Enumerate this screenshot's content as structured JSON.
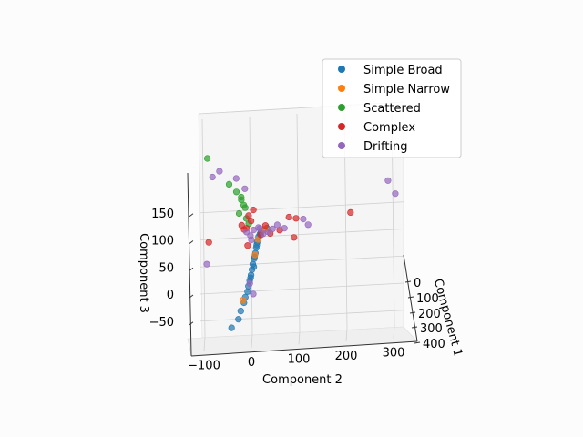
{
  "chart_data": {
    "type": "scatter",
    "projection": "3d",
    "title": "",
    "xlabel": "Component 1",
    "ylabel": "Component 2",
    "zlabel": "Component 3",
    "x_ticks": [
      "0",
      "100",
      "200",
      "300",
      "400"
    ],
    "y_ticks": [
      "−100",
      "0",
      "100",
      "200",
      "300"
    ],
    "z_ticks": [
      "−50",
      "0",
      "50",
      "100",
      "150"
    ],
    "xlim": [
      -20,
      420
    ],
    "ylim": [
      -120,
      320
    ],
    "zlim": [
      -70,
      260
    ],
    "grid": true,
    "legend_position": "top-right",
    "series": [
      {
        "name": "Simple Broad",
        "color": "#1f77b4",
        "points": [
          [
            20,
            -45,
            -60
          ],
          [
            20,
            -30,
            -45
          ],
          [
            20,
            -25,
            -30
          ],
          [
            20,
            -18,
            -15
          ],
          [
            20,
            -15,
            -5
          ],
          [
            20,
            -10,
            5
          ],
          [
            20,
            -8,
            15
          ],
          [
            20,
            -5,
            25
          ],
          [
            20,
            -2,
            35
          ],
          [
            20,
            0,
            45
          ],
          [
            20,
            2,
            55
          ],
          [
            20,
            5,
            65
          ],
          [
            20,
            8,
            75
          ],
          [
            20,
            10,
            85
          ],
          [
            20,
            12,
            95
          ],
          [
            20,
            15,
            105
          ],
          [
            20,
            18,
            110
          ],
          [
            20,
            22,
            115
          ],
          [
            20,
            28,
            118
          ],
          [
            20,
            33,
            120
          ],
          [
            20,
            -3,
            30
          ],
          [
            20,
            4,
            50
          ],
          [
            20,
            11,
            90
          ],
          [
            20,
            20,
            113
          ],
          [
            20,
            6,
            68
          ]
        ]
      },
      {
        "name": "Simple Narrow",
        "color": "#ff7f0e",
        "points": [
          [
            20,
            -20,
            -10
          ],
          [
            20,
            14,
            100
          ],
          [
            20,
            25,
            116
          ],
          [
            20,
            7,
            72
          ],
          [
            20,
            30,
            119
          ]
        ]
      },
      {
        "name": "Scattered",
        "color": "#2ca02c",
        "points": [
          [
            20,
            -90,
            255
          ],
          [
            20,
            -45,
            205
          ],
          [
            20,
            -30,
            190
          ],
          [
            20,
            -20,
            180
          ],
          [
            20,
            -15,
            165
          ],
          [
            20,
            -25,
            150
          ],
          [
            20,
            -10,
            140
          ],
          [
            20,
            -5,
            130
          ],
          [
            20,
            -20,
            175
          ],
          [
            20,
            -12,
            160
          ]
        ]
      },
      {
        "name": "Complex",
        "color": "#d62728",
        "points": [
          [
            20,
            -90,
            100
          ],
          [
            20,
            210,
            140
          ],
          [
            20,
            80,
            138
          ],
          [
            20,
            95,
            135
          ],
          [
            20,
            90,
            100
          ],
          [
            20,
            -20,
            128
          ],
          [
            20,
            -10,
            122
          ],
          [
            20,
            60,
            115
          ],
          [
            20,
            40,
            110
          ],
          [
            20,
            -8,
            90
          ],
          [
            20,
            0,
            135
          ],
          [
            20,
            -5,
            145
          ],
          [
            20,
            5,
            155
          ],
          [
            20,
            -15,
            120
          ],
          [
            20,
            20,
            108
          ],
          [
            20,
            30,
            125
          ]
        ]
      },
      {
        "name": "Drifting",
        "color": "#9467bd",
        "points": [
          [
            20,
            -95,
            60
          ],
          [
            20,
            290,
            195
          ],
          [
            20,
            305,
            170
          ],
          [
            20,
            -65,
            230
          ],
          [
            20,
            -80,
            220
          ],
          [
            20,
            -30,
            215
          ],
          [
            20,
            -12,
            195
          ],
          [
            20,
            110,
            133
          ],
          [
            20,
            120,
            122
          ],
          [
            20,
            70,
            118
          ],
          [
            20,
            55,
            125
          ],
          [
            20,
            -10,
            115
          ],
          [
            20,
            5,
            118
          ],
          [
            20,
            -2,
            108
          ],
          [
            20,
            25,
            110
          ],
          [
            20,
            15,
            122
          ],
          [
            20,
            45,
            118
          ],
          [
            20,
            35,
            113
          ],
          [
            20,
            0,
            100
          ],
          [
            20,
            18,
            120
          ],
          [
            20,
            -5,
            20
          ],
          [
            20,
            2,
            0
          ]
        ]
      }
    ]
  }
}
